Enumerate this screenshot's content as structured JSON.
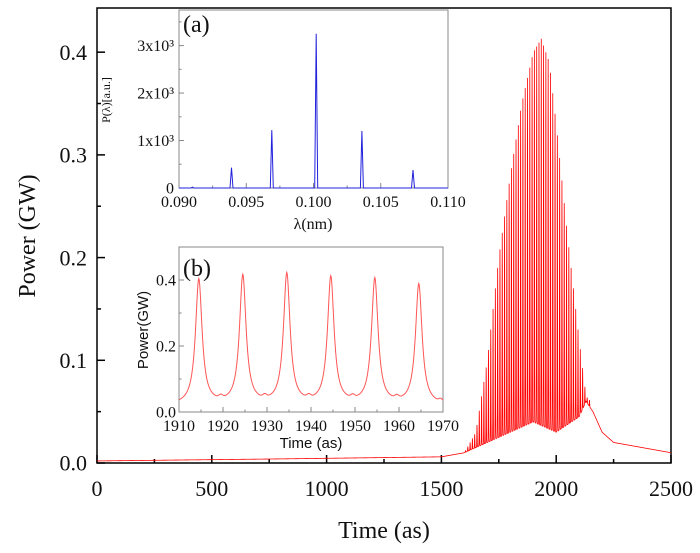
{
  "chart_data": [
    {
      "id": "main",
      "type": "line",
      "xlabel": "Time (as)",
      "ylabel": "Power (GW)",
      "xlim": [
        0,
        2500
      ],
      "ylim": [
        0,
        0.443
      ],
      "xticks": [
        "0",
        "500",
        "1000",
        "1500",
        "2000",
        "2500"
      ],
      "yticks": [
        "0.0",
        "0.1",
        "0.2",
        "0.3",
        "0.4"
      ],
      "color": "#ff0000",
      "oscillation_period": 10,
      "upper_envelope": [
        [
          0,
          0.002
        ],
        [
          800,
          0.004
        ],
        [
          1500,
          0.006
        ],
        [
          1600,
          0.01
        ],
        [
          1650,
          0.03
        ],
        [
          1700,
          0.1
        ],
        [
          1750,
          0.2
        ],
        [
          1800,
          0.28
        ],
        [
          1850,
          0.35
        ],
        [
          1900,
          0.4
        ],
        [
          1935,
          0.413
        ],
        [
          1970,
          0.39
        ],
        [
          2000,
          0.33
        ],
        [
          2050,
          0.22
        ],
        [
          2100,
          0.12
        ],
        [
          2130,
          0.065
        ],
        [
          2150,
          0.06
        ]
      ],
      "lower_envelope": [
        [
          0,
          0.002
        ],
        [
          800,
          0.004
        ],
        [
          1500,
          0.006
        ],
        [
          1600,
          0.01
        ],
        [
          1700,
          0.02
        ],
        [
          1800,
          0.03
        ],
        [
          1900,
          0.04
        ],
        [
          1950,
          0.035
        ],
        [
          2000,
          0.03
        ],
        [
          2100,
          0.045
        ],
        [
          2130,
          0.06
        ],
        [
          2160,
          0.05
        ],
        [
          2200,
          0.03
        ],
        [
          2250,
          0.02
        ],
        [
          2500,
          0.01
        ]
      ]
    },
    {
      "id": "inset-a",
      "type": "line",
      "panel_label": "(a)",
      "xlabel": "λ(nm)",
      "ylabel": "P(λ)[a.u.]",
      "xlim": [
        0.09,
        0.11
      ],
      "ylim": [
        0,
        3750
      ],
      "xticks": [
        "0.090",
        "0.095",
        "0.100",
        "0.105",
        "0.110"
      ],
      "yticks": [
        "0",
        "1x10³",
        "2x10³",
        "3x10³"
      ],
      "color": "#2222dd",
      "peaks": [
        [
          0.091,
          20
        ],
        [
          0.0939,
          430
        ],
        [
          0.0969,
          1220
        ],
        [
          0.1002,
          3250
        ],
        [
          0.1036,
          1200
        ],
        [
          0.1074,
          380
        ]
      ]
    },
    {
      "id": "inset-b",
      "type": "line",
      "panel_label": "(b)",
      "xlabel": "Time (as)",
      "ylabel": "Power(GW)",
      "xlim": [
        1910,
        1970
      ],
      "ylim": [
        0,
        0.5
      ],
      "xticks": [
        "1910",
        "1920",
        "1930",
        "1940",
        "1950",
        "1960",
        "1970"
      ],
      "yticks": [
        "0.0",
        "0.2",
        "0.4"
      ],
      "color": "#ff5555",
      "baseline": 0.02,
      "peaks": [
        [
          1914.5,
          0.4
        ],
        [
          1924.5,
          0.41
        ],
        [
          1934.5,
          0.415
        ],
        [
          1944.5,
          0.405
        ],
        [
          1954.5,
          0.4
        ],
        [
          1964.5,
          0.385
        ]
      ]
    }
  ]
}
